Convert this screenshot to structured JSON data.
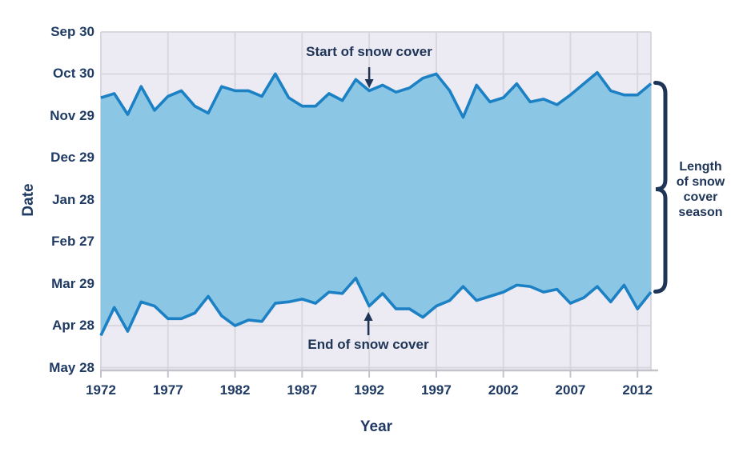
{
  "chart_data": {
    "type": "area",
    "title": "",
    "xlabel": "Year",
    "ylabel": "Date",
    "x_range": [
      1972,
      2013
    ],
    "x_ticks": [
      1972,
      1977,
      1982,
      1987,
      1992,
      1997,
      2002,
      2007,
      2012
    ],
    "y_axis_unit": "days after Sep 30",
    "y_ticks": [
      {
        "label": "Sep 30",
        "day": 0
      },
      {
        "label": "Oct 30",
        "day": 30
      },
      {
        "label": "Nov 29",
        "day": 60
      },
      {
        "label": "Dec 29",
        "day": 90
      },
      {
        "label": "Jan 28",
        "day": 120
      },
      {
        "label": "Feb 27",
        "day": 150
      },
      {
        "label": "Mar 29",
        "day": 180
      },
      {
        "label": "Apr 28",
        "day": 210
      },
      {
        "label": "May 28",
        "day": 240
      }
    ],
    "grid": true,
    "years": [
      1972,
      1973,
      1974,
      1975,
      1976,
      1977,
      1978,
      1979,
      1980,
      1981,
      1982,
      1983,
      1984,
      1985,
      1986,
      1987,
      1988,
      1989,
      1990,
      1991,
      1992,
      1993,
      1994,
      1995,
      1996,
      1997,
      1998,
      1999,
      2000,
      2001,
      2002,
      2003,
      2004,
      2005,
      2006,
      2007,
      2008,
      2009,
      2010,
      2011,
      2012,
      2013
    ],
    "series": [
      {
        "name": "Start of snow cover",
        "key": "start",
        "days_after_sep30": [
          47,
          44,
          59,
          39,
          56,
          46,
          42,
          53,
          58,
          39,
          42,
          42,
          46,
          30,
          47,
          53,
          53,
          44,
          49,
          34,
          42,
          38,
          43,
          40,
          33,
          30,
          42,
          61,
          38,
          50,
          47,
          37,
          50,
          48,
          52,
          45,
          37,
          29,
          42,
          45,
          45,
          37
        ]
      },
      {
        "name": "End of snow cover",
        "key": "end",
        "days_after_sep30": [
          217,
          197,
          214,
          193,
          196,
          205,
          205,
          201,
          189,
          203,
          210,
          206,
          207,
          194,
          193,
          191,
          194,
          186,
          187,
          176,
          196,
          187,
          198,
          198,
          204,
          196,
          192,
          182,
          192,
          189,
          186,
          181,
          182,
          186,
          184,
          194,
          190,
          182,
          193,
          181,
          198,
          186
        ]
      }
    ],
    "annotations": {
      "start": {
        "text": "Start of snow cover",
        "year": 1992
      },
      "end": {
        "text": "End of snow cover",
        "year": 1992
      }
    },
    "bracket_label": "Length of snow cover season",
    "legend": "none",
    "colors": {
      "area_fill": "#8BC7E5",
      "line": "#1B80C4",
      "plot_background": "#ECEAF2",
      "gridline": "#D8D7DE",
      "axis_line": "#C4C3CA",
      "text": "#1F3A63",
      "annotation": "#1E3557"
    }
  }
}
